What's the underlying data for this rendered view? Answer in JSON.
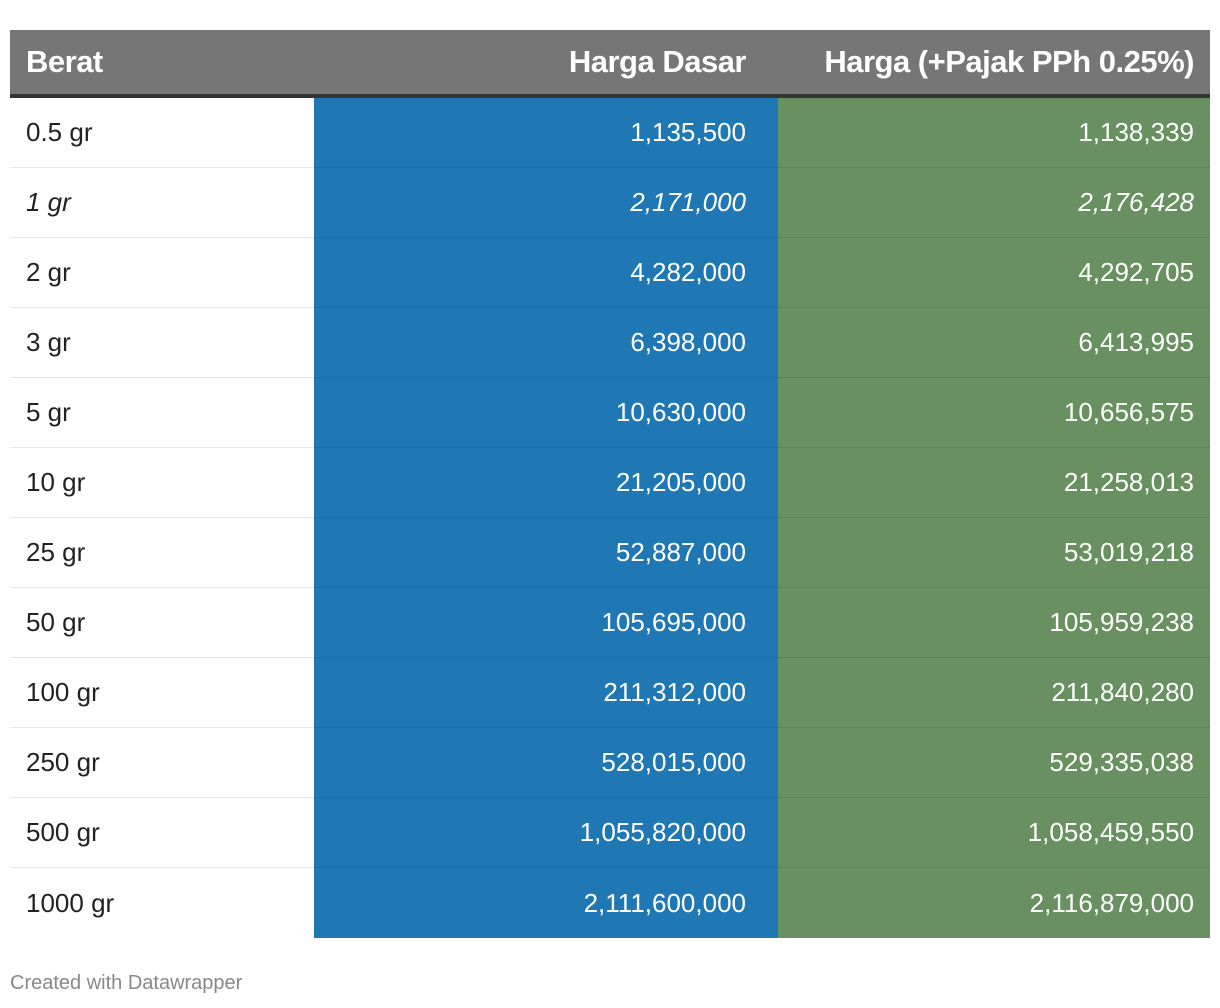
{
  "chart_data": {
    "type": "table",
    "columns": [
      "Berat",
      "Harga Dasar",
      "Harga (+Pajak PPh 0.25%)"
    ],
    "rows": [
      {
        "weight": "0.5 gr",
        "base": "1,135,500",
        "tax": "1,138,339",
        "italic": false
      },
      {
        "weight": "1 gr",
        "base": "2,171,000",
        "tax": "2,176,428",
        "italic": true
      },
      {
        "weight": "2 gr",
        "base": "4,282,000",
        "tax": "4,292,705",
        "italic": false
      },
      {
        "weight": "3 gr",
        "base": "6,398,000",
        "tax": "6,413,995",
        "italic": false
      },
      {
        "weight": "5 gr",
        "base": "10,630,000",
        "tax": "10,656,575",
        "italic": false
      },
      {
        "weight": "10 gr",
        "base": "21,205,000",
        "tax": "21,258,013",
        "italic": false
      },
      {
        "weight": "25 gr",
        "base": "52,887,000",
        "tax": "53,019,218",
        "italic": false
      },
      {
        "weight": "50 gr",
        "base": "105,695,000",
        "tax": "105,959,238",
        "italic": false
      },
      {
        "weight": "100 gr",
        "base": "211,312,000",
        "tax": "211,840,280",
        "italic": false
      },
      {
        "weight": "250 gr",
        "base": "528,015,000",
        "tax": "529,335,038",
        "italic": false
      },
      {
        "weight": "500 gr",
        "base": "1,055,820,000",
        "tax": "1,058,459,550",
        "italic": false
      },
      {
        "weight": "1000 gr",
        "base": "2,111,600,000",
        "tax": "2,116,879,000",
        "italic": false
      }
    ],
    "colors": {
      "header": "#767676",
      "base_column": "#1f78b4",
      "tax_column": "#689060"
    }
  },
  "footer": {
    "credit": "Created with Datawrapper"
  }
}
